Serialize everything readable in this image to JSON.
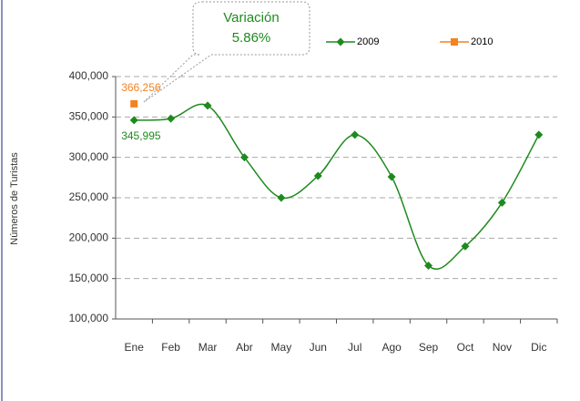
{
  "chart_data": {
    "type": "line",
    "y_label": "Números de Turistas",
    "annotation": [
      "Variación",
      "5.86%"
    ],
    "categories": [
      "Ene",
      "Feb",
      "Mar",
      "Abr",
      "May",
      "Jun",
      "Jul",
      "Ago",
      "Sep",
      "Oct",
      "Nov",
      "Dic"
    ],
    "series": [
      {
        "name": "2009",
        "color": "#1e8a1e",
        "marker": "diamond",
        "values": [
          345995,
          348000,
          364000,
          300000,
          250000,
          277000,
          328000,
          276000,
          166000,
          190000,
          244000,
          328000
        ],
        "value_labels": [
          "345,995",
          null,
          null,
          null,
          null,
          null,
          null,
          null,
          null,
          null,
          null,
          null
        ]
      },
      {
        "name": "2010",
        "color": "#f58220",
        "marker": "square",
        "values": [
          366256,
          null,
          null,
          null,
          null,
          null,
          null,
          null,
          null,
          null,
          null,
          null
        ],
        "value_labels": [
          "366,256",
          null,
          null,
          null,
          null,
          null,
          null,
          null,
          null,
          null,
          null,
          null
        ]
      }
    ],
    "ylim": [
      100000,
      400000
    ],
    "yticks": [
      {
        "value": 100000,
        "label": "100,000"
      },
      {
        "value": 150000,
        "label": "150,000"
      },
      {
        "value": 200000,
        "label": "200,000"
      },
      {
        "value": 250000,
        "label": "250,000"
      },
      {
        "value": 300000,
        "label": "300,000"
      },
      {
        "value": 350000,
        "label": "350,000"
      },
      {
        "value": 400000,
        "label": "400,000"
      }
    ],
    "grid": true,
    "smooth": true,
    "legend": "top"
  }
}
